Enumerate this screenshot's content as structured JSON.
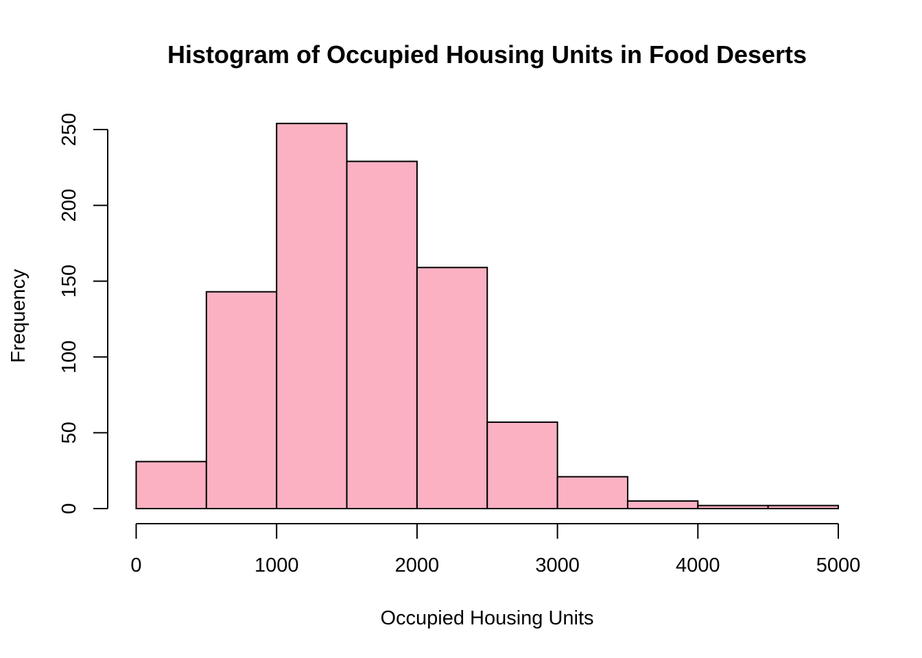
{
  "chart_data": {
    "type": "bar",
    "title": "Histogram of Occupied Housing Units in Food Deserts",
    "xlabel": "Occupied Housing Units",
    "ylabel": "Frequency",
    "bins": [
      {
        "start": 0,
        "end": 500,
        "count": 31
      },
      {
        "start": 500,
        "end": 1000,
        "count": 143
      },
      {
        "start": 1000,
        "end": 1500,
        "count": 254
      },
      {
        "start": 1500,
        "end": 2000,
        "count": 229
      },
      {
        "start": 2000,
        "end": 2500,
        "count": 159
      },
      {
        "start": 2500,
        "end": 3000,
        "count": 57
      },
      {
        "start": 3000,
        "end": 3500,
        "count": 21
      },
      {
        "start": 3500,
        "end": 4000,
        "count": 5
      },
      {
        "start": 4000,
        "end": 4500,
        "count": 2
      },
      {
        "start": 4500,
        "end": 5000,
        "count": 2
      }
    ],
    "xlim": [
      0,
      5000
    ],
    "ylim": [
      0,
      250
    ],
    "xticks": [
      0,
      1000,
      2000,
      3000,
      4000,
      5000
    ],
    "yticks": [
      0,
      50,
      100,
      150,
      200,
      250
    ],
    "bar_fill": "#FBB1C2",
    "bar_stroke": "#000000",
    "grid": false
  }
}
